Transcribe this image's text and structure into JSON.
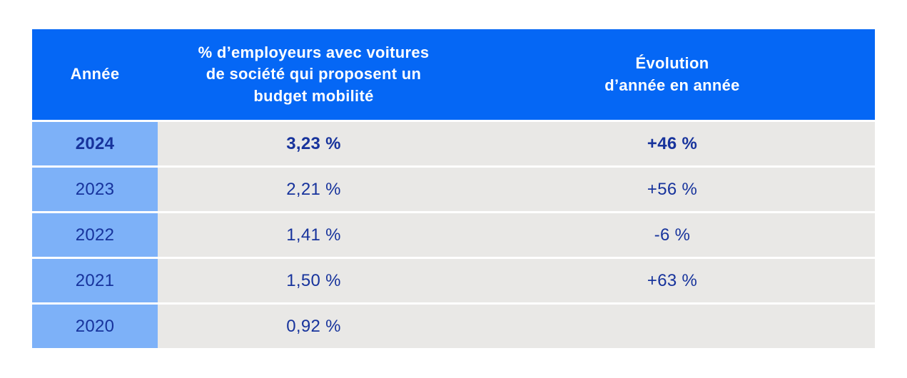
{
  "colors": {
    "header_bg": "#0567f5",
    "header_text": "#ffffff",
    "year_column_bg": "#7db1f8",
    "cell_bg": "#e9e8e6",
    "cell_text": "#17339c"
  },
  "table": {
    "columns": [
      {
        "label": "Année"
      },
      {
        "label": "% d’employeurs avec voitures\nde société qui proposent un\nbudget mobilité"
      },
      {
        "label": "Évolution\nd’année en année"
      }
    ],
    "rows": [
      {
        "year": "2024",
        "percent": "3,23 %",
        "evolution": "+46 %",
        "bold": true
      },
      {
        "year": "2023",
        "percent": "2,21 %",
        "evolution": "+56 %",
        "bold": false
      },
      {
        "year": "2022",
        "percent": "1,41 %",
        "evolution": "-6 %",
        "bold": false
      },
      {
        "year": "2021",
        "percent": "1,50 %",
        "evolution": "+63 %",
        "bold": false
      },
      {
        "year": "2020",
        "percent": "0,92 %",
        "evolution": "",
        "bold": false
      }
    ]
  },
  "chart_data": {
    "type": "table",
    "title": "",
    "columns": [
      "Année",
      "% d’employeurs avec voitures de société qui proposent un budget mobilité",
      "Évolution d’année en année"
    ],
    "rows": [
      [
        "2024",
        "3,23 %",
        "+46 %"
      ],
      [
        "2023",
        "2,21 %",
        "+56 %"
      ],
      [
        "2022",
        "1,41 %",
        "-6 %"
      ],
      [
        "2021",
        "1,50 %",
        "+63 %"
      ],
      [
        "2020",
        "0,92 %",
        ""
      ]
    ],
    "numeric": {
      "years": [
        2024,
        2023,
        2022,
        2021,
        2020
      ],
      "percent_employers_with_mobility_budget": [
        3.23,
        2.21,
        1.41,
        1.5,
        0.92
      ],
      "year_over_year_evolution_percent": [
        46,
        56,
        -6,
        63,
        null
      ]
    }
  }
}
